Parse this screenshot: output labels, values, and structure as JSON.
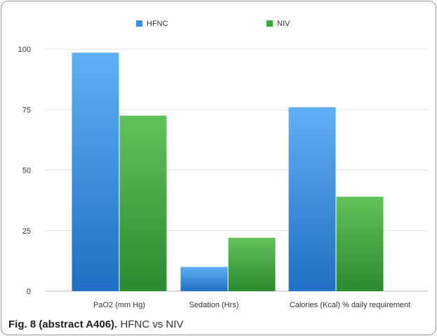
{
  "chart_data": {
    "type": "bar",
    "categories": [
      "PaO2 (mm Hg)",
      "Sedation (Hrs)",
      "Calories (Kcal) % daily requirement"
    ],
    "series": [
      {
        "name": "HFNC",
        "values": [
          98.5,
          10,
          76
        ]
      },
      {
        "name": "NIV",
        "values": [
          72.5,
          22,
          39
        ]
      }
    ],
    "yticks": [
      0,
      25,
      50,
      75,
      100
    ],
    "ylim": [
      0,
      100
    ],
    "grid": true,
    "legend_position": "top-center",
    "colors": {
      "HFNC": "#3a8fe0",
      "NIV": "#3fa43c"
    }
  },
  "caption": {
    "label": "Fig. 8 (abstract A406).",
    "text": "HFNC vs NIV"
  }
}
